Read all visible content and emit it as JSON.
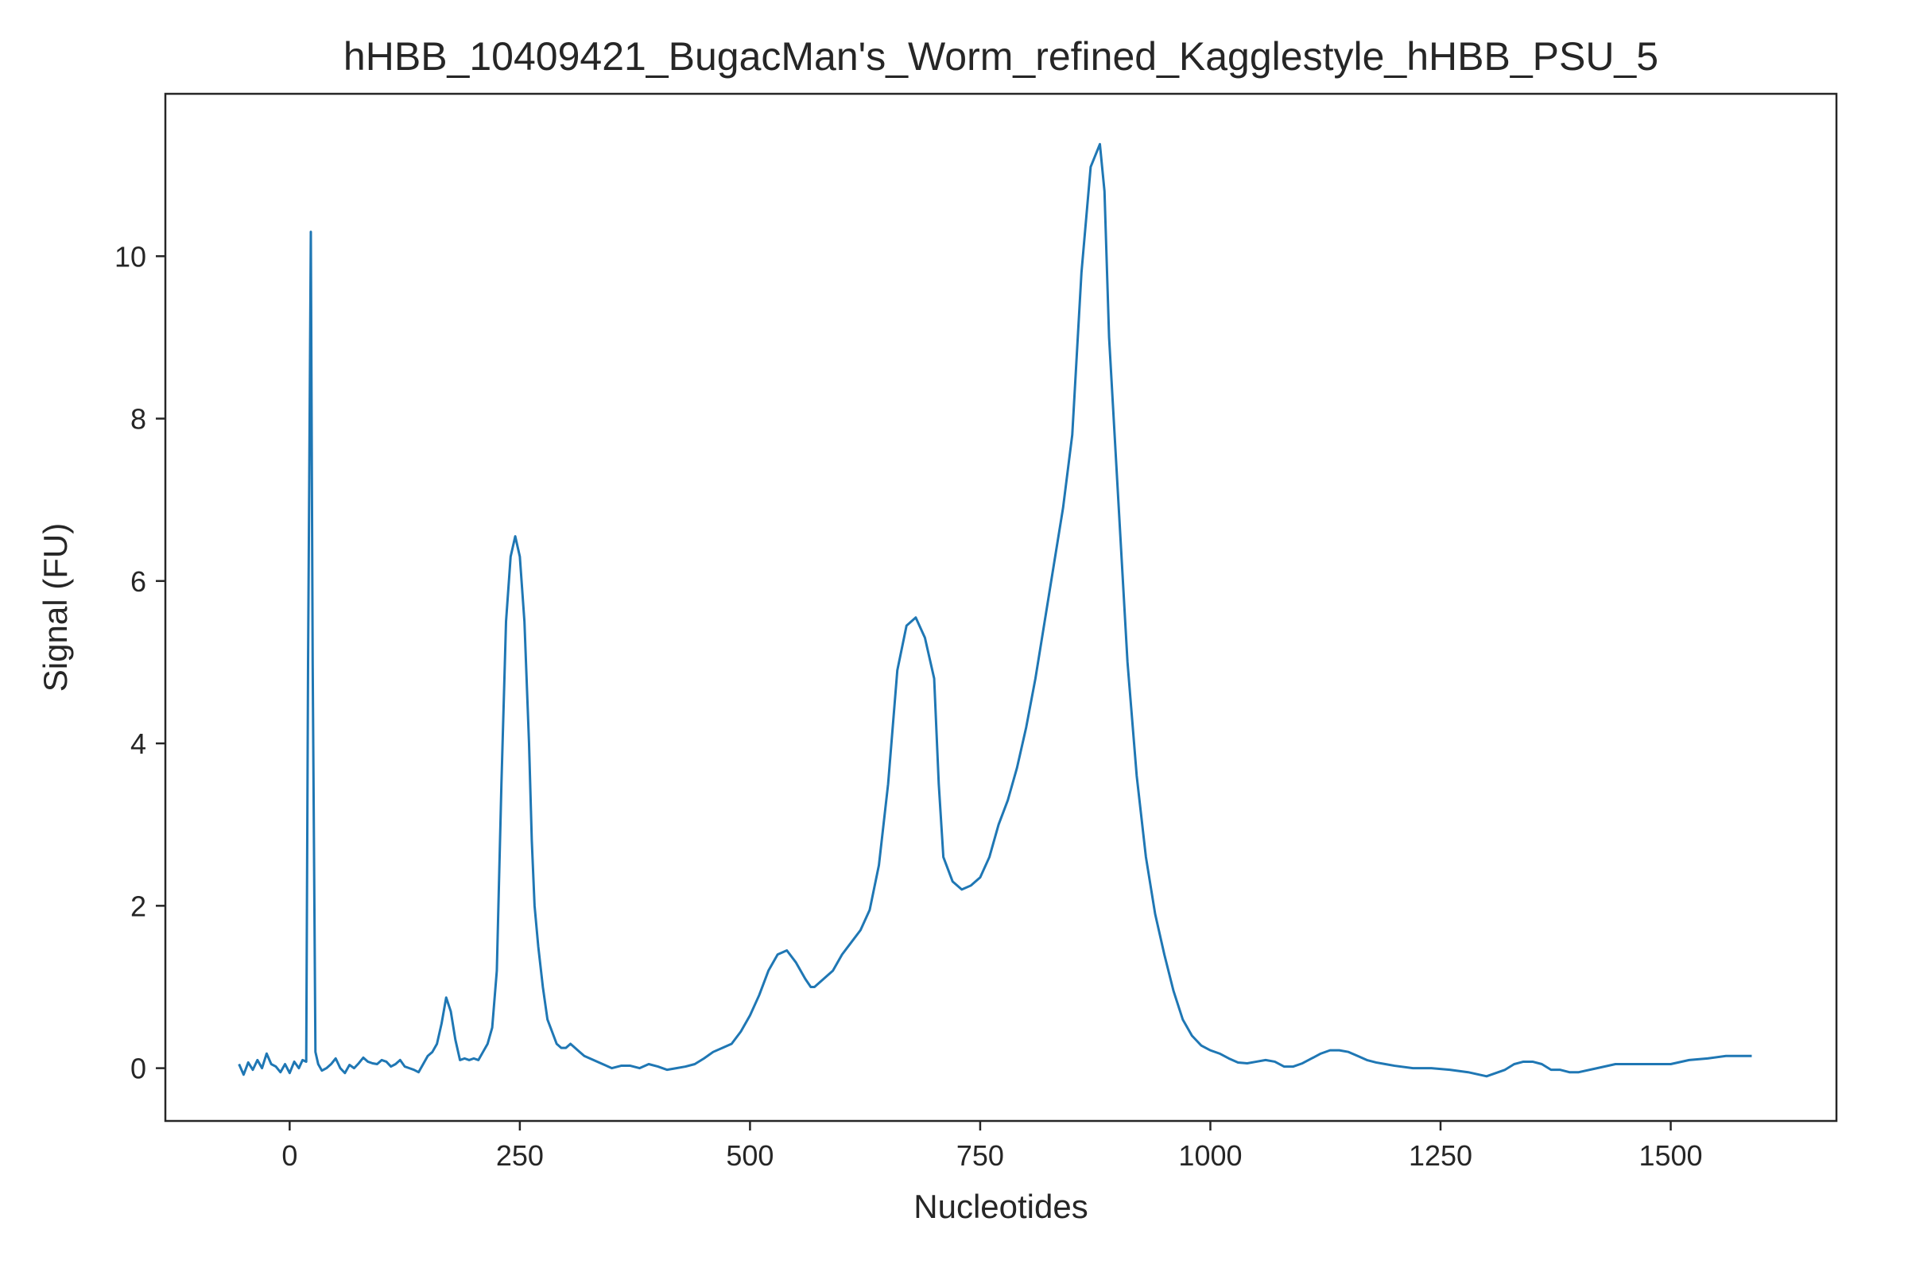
{
  "chart_data": {
    "type": "line",
    "title": "hHBB_10409421_BugacMan's_Worm_refined_Kagglestyle_hHBB_PSU_5",
    "xlabel": "Nucleotides",
    "ylabel": "Signal (FU)",
    "xlim": [
      -135,
      1680
    ],
    "ylim": [
      -0.65,
      12.0
    ],
    "x_ticks": [
      0,
      250,
      500,
      750,
      1000,
      1250,
      1500
    ],
    "y_ticks": [
      0,
      2,
      4,
      6,
      8,
      10
    ],
    "grid": false,
    "line_color": "#1f77b4",
    "series": [
      {
        "x": [
          -55,
          -50,
          -45,
          -40,
          -35,
          -30,
          -25,
          -20,
          -15,
          -10,
          -5,
          0,
          5,
          10,
          14,
          18,
          20,
          23,
          25,
          28,
          31,
          35,
          40,
          45,
          50,
          55,
          60,
          65,
          70,
          75,
          80,
          85,
          90,
          95,
          100,
          105,
          110,
          115,
          120,
          125,
          130,
          135,
          140,
          145,
          150,
          155,
          160,
          165,
          170,
          175,
          180,
          185,
          190,
          195,
          200,
          205,
          210,
          215,
          220,
          225,
          230,
          235,
          240,
          245,
          250,
          255,
          260,
          263,
          266,
          270,
          275,
          280,
          285,
          290,
          295,
          300,
          305,
          310,
          315,
          320,
          330,
          340,
          350,
          360,
          370,
          380,
          390,
          400,
          410,
          420,
          430,
          440,
          450,
          460,
          470,
          480,
          490,
          500,
          510,
          520,
          530,
          540,
          550,
          560,
          566,
          570,
          580,
          590,
          600,
          610,
          620,
          630,
          640,
          650,
          660,
          670,
          680,
          690,
          700,
          705,
          710,
          720,
          730,
          740,
          750,
          760,
          770,
          780,
          790,
          800,
          810,
          820,
          830,
          840,
          850,
          860,
          870,
          880,
          885,
          890,
          900,
          910,
          920,
          930,
          940,
          950,
          960,
          970,
          980,
          990,
          1000,
          1010,
          1020,
          1030,
          1040,
          1050,
          1060,
          1070,
          1080,
          1090,
          1100,
          1110,
          1120,
          1130,
          1140,
          1150,
          1160,
          1170,
          1180,
          1190,
          1200,
          1220,
          1240,
          1260,
          1280,
          1300,
          1320,
          1330,
          1340,
          1350,
          1360,
          1370,
          1380,
          1390,
          1400,
          1420,
          1440,
          1460,
          1480,
          1500,
          1520,
          1540,
          1560,
          1588
        ],
        "y": [
          0.05,
          -0.08,
          0.07,
          -0.02,
          0.1,
          0.0,
          0.18,
          0.05,
          0.02,
          -0.05,
          0.05,
          -0.06,
          0.08,
          0.0,
          0.1,
          0.08,
          5.0,
          10.3,
          5.0,
          0.2,
          0.05,
          -0.03,
          0.0,
          0.05,
          0.12,
          0.0,
          -0.06,
          0.04,
          0.0,
          0.06,
          0.13,
          0.08,
          0.06,
          0.05,
          0.1,
          0.08,
          0.02,
          0.05,
          0.1,
          0.02,
          0.0,
          -0.02,
          -0.05,
          0.05,
          0.15,
          0.2,
          0.3,
          0.55,
          0.87,
          0.7,
          0.35,
          0.1,
          0.12,
          0.1,
          0.12,
          0.1,
          0.2,
          0.3,
          0.5,
          1.2,
          3.5,
          5.5,
          6.3,
          6.55,
          6.3,
          5.5,
          4.0,
          2.8,
          2.0,
          1.5,
          1.0,
          0.6,
          0.45,
          0.3,
          0.25,
          0.25,
          0.3,
          0.25,
          0.2,
          0.15,
          0.1,
          0.05,
          0.0,
          0.03,
          0.03,
          0.0,
          0.05,
          0.02,
          -0.02,
          0.0,
          0.02,
          0.05,
          0.12,
          0.2,
          0.25,
          0.3,
          0.45,
          0.65,
          0.9,
          1.2,
          1.4,
          1.45,
          1.3,
          1.1,
          1.0,
          1.0,
          1.1,
          1.2,
          1.4,
          1.55,
          1.7,
          1.95,
          2.5,
          3.5,
          4.9,
          5.45,
          5.55,
          5.3,
          4.8,
          3.5,
          2.6,
          2.3,
          2.2,
          2.25,
          2.35,
          2.6,
          3.0,
          3.3,
          3.7,
          4.2,
          4.8,
          5.5,
          6.2,
          6.9,
          7.8,
          9.8,
          11.1,
          11.38,
          10.8,
          9.0,
          7.0,
          5.0,
          3.6,
          2.6,
          1.9,
          1.4,
          0.95,
          0.6,
          0.4,
          0.28,
          0.22,
          0.18,
          0.12,
          0.07,
          0.06,
          0.08,
          0.1,
          0.08,
          0.02,
          0.02,
          0.06,
          0.12,
          0.18,
          0.22,
          0.22,
          0.2,
          0.15,
          0.1,
          0.07,
          0.05,
          0.03,
          0.0,
          0.0,
          -0.02,
          -0.05,
          -0.1,
          -0.02,
          0.05,
          0.08,
          0.08,
          0.05,
          -0.02,
          -0.02,
          -0.05,
          -0.05,
          0.0,
          0.05,
          0.05,
          0.05,
          0.05,
          0.1,
          0.12,
          0.15,
          0.15
        ]
      }
    ]
  }
}
